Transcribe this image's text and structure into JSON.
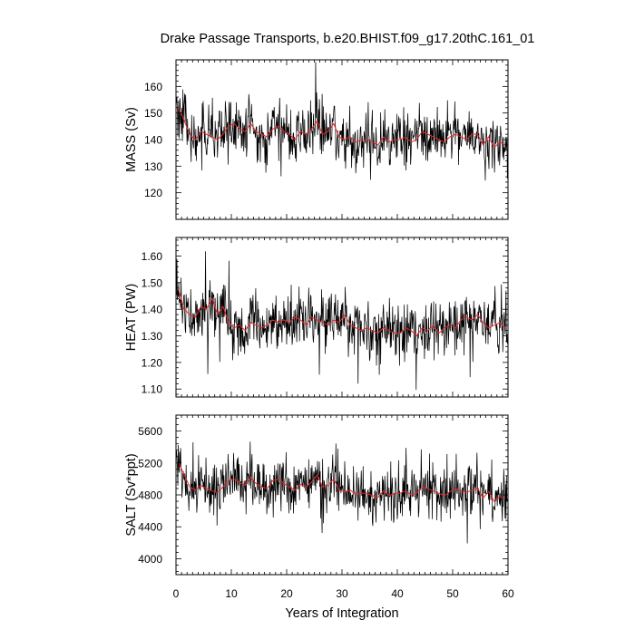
{
  "title": "Drake Passage Transports, b.e20.BHIST.f09_g17.20thC.161_01",
  "colors": {
    "monthly": "#000000",
    "annual": "#e8262a",
    "axis": "#000000",
    "background": "#ffffff"
  },
  "chart_data": [
    {
      "type": "line",
      "panel": "MASS",
      "ylabel": "MASS (Sv)",
      "xlabel": "",
      "xlim": [
        0,
        60
      ],
      "ylim": [
        110,
        170
      ],
      "yticks": [
        120,
        130,
        140,
        150,
        160
      ],
      "ytick_labels": [
        "120",
        "130",
        "140",
        "150",
        "160"
      ],
      "xticks": [
        0,
        10,
        20,
        30,
        40,
        50,
        60
      ],
      "grid": false,
      "series": [
        {
          "style": "monthly",
          "x_step_years": 0.0833,
          "values": []
        },
        {
          "style": "annual",
          "x_start": 0.5,
          "x_step_years": 1,
          "values": [
            152,
            147,
            142,
            140,
            143,
            142,
            141,
            140,
            142,
            145,
            146,
            144,
            143,
            146,
            143,
            142,
            141,
            144,
            145,
            143,
            142,
            140,
            143,
            142,
            144,
            147,
            142,
            143,
            146,
            141,
            140,
            141,
            139,
            140,
            140,
            139,
            138,
            141,
            139,
            140,
            140,
            141,
            139,
            140,
            143,
            142,
            141,
            140,
            139,
            141,
            142,
            141,
            140,
            142,
            142,
            138,
            141,
            137,
            139,
            138
          ]
        }
      ]
    },
    {
      "type": "line",
      "panel": "HEAT",
      "ylabel": "HEAT (PW)",
      "xlabel": "",
      "xlim": [
        0,
        60
      ],
      "ylim": [
        1.07,
        1.67
      ],
      "yticks": [
        1.1,
        1.2,
        1.3,
        1.4,
        1.5,
        1.6
      ],
      "ytick_labels": [
        "1.10",
        "1.20",
        "1.30",
        "1.40",
        "1.50",
        "1.60"
      ],
      "xticks": [
        0,
        10,
        20,
        30,
        40,
        50,
        60
      ],
      "grid": false,
      "series": [
        {
          "style": "monthly",
          "x_step_years": 0.0833,
          "values": []
        },
        {
          "style": "annual",
          "x_start": 0.5,
          "x_step_years": 1,
          "values": [
            1.47,
            1.4,
            1.38,
            1.37,
            1.41,
            1.4,
            1.44,
            1.38,
            1.41,
            1.35,
            1.33,
            1.34,
            1.32,
            1.35,
            1.34,
            1.33,
            1.34,
            1.36,
            1.35,
            1.36,
            1.35,
            1.37,
            1.36,
            1.34,
            1.37,
            1.36,
            1.35,
            1.34,
            1.36,
            1.35,
            1.38,
            1.34,
            1.33,
            1.32,
            1.33,
            1.32,
            1.31,
            1.33,
            1.32,
            1.31,
            1.31,
            1.33,
            1.32,
            1.3,
            1.33,
            1.32,
            1.34,
            1.31,
            1.33,
            1.34,
            1.33,
            1.36,
            1.37,
            1.36,
            1.38,
            1.35,
            1.33,
            1.34,
            1.35,
            1.33
          ]
        }
      ]
    },
    {
      "type": "line",
      "panel": "SALT",
      "ylabel": "SALT (Sv*ppt)",
      "xlabel": "Years of Integration",
      "xlim": [
        0,
        60
      ],
      "ylim": [
        3800,
        5800
      ],
      "yticks": [
        4000,
        4400,
        4800,
        5200,
        5600
      ],
      "ytick_labels": [
        "4000",
        "4400",
        "4800",
        "5200",
        "5600"
      ],
      "xticks": [
        0,
        10,
        20,
        30,
        40,
        50,
        60
      ],
      "xtick_labels": [
        "0",
        "10",
        "20",
        "30",
        "40",
        "50",
        "60"
      ],
      "grid": false,
      "series": [
        {
          "style": "monthly",
          "x_step_years": 0.0833,
          "values": []
        },
        {
          "style": "annual",
          "x_start": 0.5,
          "x_step_years": 1,
          "values": [
            5200,
            5050,
            4900,
            4860,
            4920,
            4880,
            4850,
            4830,
            4900,
            4980,
            5000,
            4950,
            4920,
            5020,
            4940,
            4900,
            4880,
            4980,
            5000,
            4940,
            4900,
            4860,
            4930,
            4900,
            4960,
            5050,
            4900,
            4920,
            5000,
            4860,
            4840,
            4860,
            4800,
            4820,
            4820,
            4790,
            4770,
            4850,
            4790,
            4820,
            4820,
            4850,
            4800,
            4820,
            4900,
            4880,
            4850,
            4820,
            4790,
            4840,
            4880,
            4850,
            4830,
            4860,
            4880,
            4760,
            4840,
            4720,
            4780,
            4760
          ]
        }
      ]
    }
  ]
}
